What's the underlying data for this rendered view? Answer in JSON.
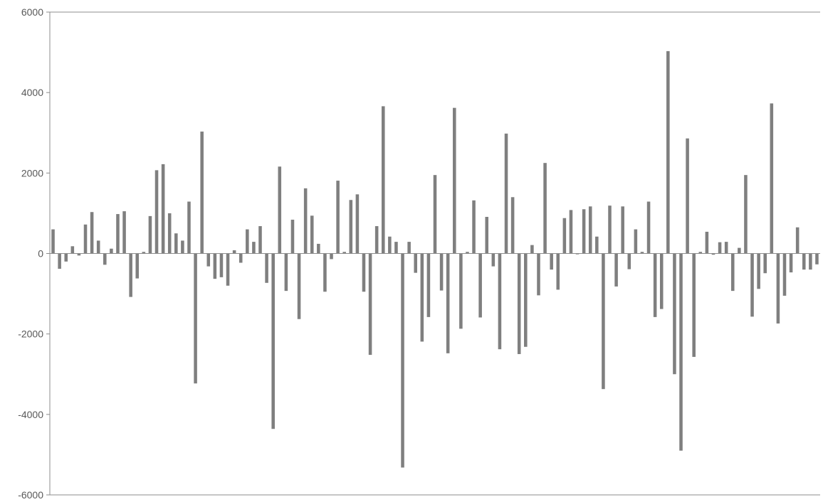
{
  "chart_data": {
    "type": "bar",
    "title": "",
    "xlabel": "",
    "ylabel": "",
    "ylim": [
      -6000,
      6000
    ],
    "yticks": [
      6000,
      4000,
      2000,
      0,
      -2000,
      -4000,
      -6000
    ],
    "ytick_labels": [
      "6000",
      "4000",
      "2000",
      "0",
      "-2000",
      "-4000",
      "-6000"
    ],
    "grid": false,
    "legend": "none",
    "bar_color": "#7f7f7f",
    "values": [
      600,
      -380,
      -200,
      180,
      -50,
      720,
      1030,
      320,
      -280,
      120,
      980,
      1050,
      -1080,
      -620,
      40,
      930,
      2070,
      2220,
      1000,
      500,
      320,
      1290,
      -3230,
      3030,
      -320,
      -630,
      -590,
      -800,
      80,
      -230,
      600,
      290,
      680,
      -730,
      -4360,
      2160,
      -930,
      840,
      -1630,
      1620,
      940,
      240,
      -950,
      -140,
      1810,
      40,
      1330,
      1470,
      -950,
      -2520,
      680,
      3660,
      420,
      290,
      -5320,
      290,
      -480,
      -2190,
      -1580,
      1950,
      -920,
      -2480,
      3620,
      -1870,
      40,
      1320,
      -1590,
      910,
      -320,
      -2380,
      2980,
      1400,
      -2500,
      -2320,
      210,
      -1040,
      2250,
      -400,
      -900,
      880,
      1080,
      -20,
      1100,
      1170,
      420,
      -3370,
      1190,
      -820,
      1170,
      -390,
      600,
      40,
      1290,
      -1580,
      -1380,
      5030,
      -3000,
      -4900,
      2860,
      -2570,
      40,
      540,
      -30,
      280,
      290,
      -930,
      140,
      1950,
      -1570,
      -880,
      -490,
      3730,
      -1740,
      -1050,
      -470,
      650,
      -400,
      -400,
      -270
    ]
  }
}
